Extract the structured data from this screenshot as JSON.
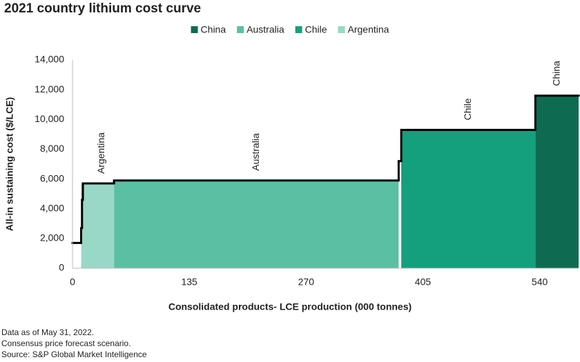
{
  "chart_data": {
    "type": "cost-curve",
    "title": "2021 country lithium cost curve",
    "x_label": "Consolidated products- LCE production (000 tonnes)",
    "y_label": "All-in sustaining cost ($/LCE)",
    "xlim": [
      0,
      585
    ],
    "xticks": [
      0,
      135,
      270,
      405,
      540
    ],
    "ylim": [
      0,
      14000
    ],
    "yticks": [
      0,
      {
        "value": 2000,
        "label": "2,000"
      },
      {
        "value": 4000,
        "label": "4,000"
      },
      {
        "value": 6000,
        "label": "6,000"
      },
      {
        "value": 8000,
        "label": "8,000"
      },
      {
        "value": 10000,
        "label": "10,000"
      },
      {
        "value": 12000,
        "label": "12,000"
      },
      {
        "value": 14000,
        "label": "14,000"
      }
    ],
    "series": [
      {
        "name": "China",
        "color": "#0e6b52",
        "x_start": [
          535
        ],
        "x_end": [
          585
        ],
        "values": [
          11600
        ]
      },
      {
        "name": "Australia",
        "color": "#5bbfa3",
        "x_start": [
          48
        ],
        "x_end": [
          377
        ],
        "values": [
          5900
        ]
      },
      {
        "name": "Chile",
        "color": "#14a07c",
        "x_start": [
          380
        ],
        "x_end": [
          535
        ],
        "values": [
          9300
        ]
      },
      {
        "name": "Argentina",
        "color": "#99d8c6",
        "x_start": [
          10
        ],
        "x_end": [
          48
        ],
        "values": [
          5700
        ]
      }
    ],
    "step_line": {
      "color": "#000000",
      "x_start": [
        0,
        10,
        11,
        12,
        48,
        377,
        380,
        535
      ],
      "x_end": [
        10,
        11,
        12,
        48,
        377,
        380,
        535,
        585
      ],
      "values": [
        1700,
        2700,
        4600,
        5700,
        5900,
        7200,
        9300,
        11600
      ]
    },
    "notes": [
      "Data as of May 31, 2022.",
      "Consensus price forecast scenario.",
      "Source: S&P Global Market Intelligence"
    ]
  }
}
